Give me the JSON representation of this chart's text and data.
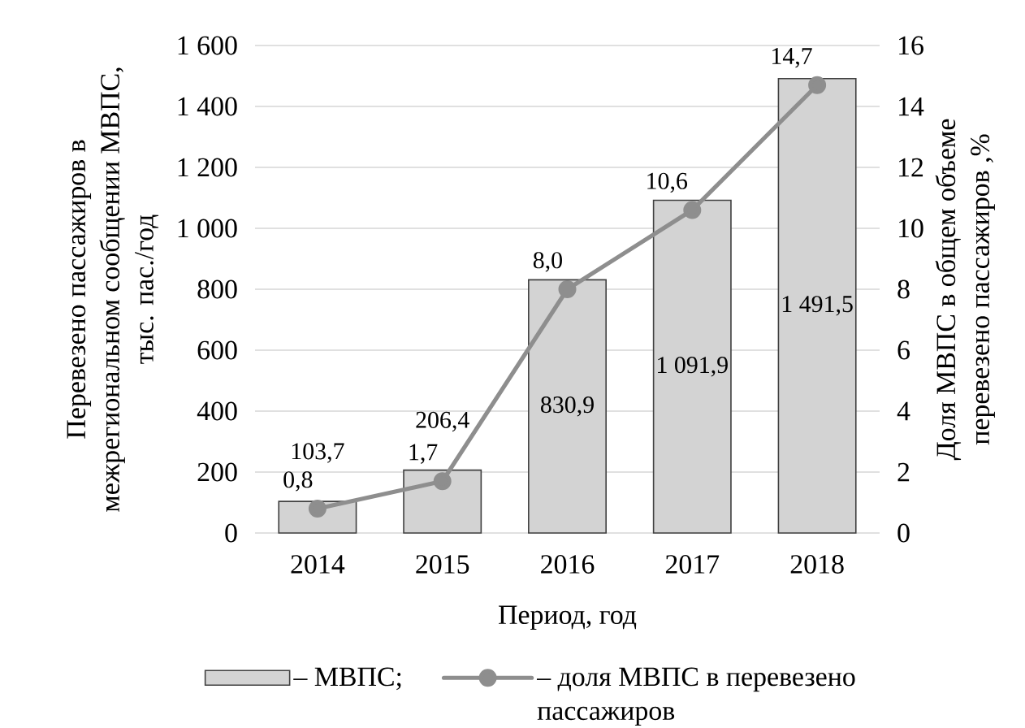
{
  "chart_data": {
    "type": "bar",
    "xlabel": "Период, год",
    "ylabel": "Перевезено пассажиров в межрегиональном сообщении МВПС, тыс. пас./год",
    "y2label": "Доля МВПС в общем объеме перевезено пассажиров ,%",
    "categories": [
      "2014",
      "2015",
      "2016",
      "2017",
      "2018"
    ],
    "series": [
      {
        "name": "– МВПС;",
        "color": "#d3d3d3",
        "values": [
          103.7,
          206.4,
          830.9,
          1091.9,
          1491.5
        ],
        "value_labels": [
          "103,7",
          "206,4",
          "830,9",
          "1 091,9",
          "1 491,5"
        ]
      },
      {
        "name": "– доля МВПС в перевезено пассажиров",
        "type": "line",
        "axis": "y2",
        "color": "#8e8e8e",
        "marker": "circle",
        "values": [
          0.8,
          1.7,
          8.0,
          10.6,
          14.7
        ],
        "value_labels": [
          "0,8",
          "1,7",
          "8,0",
          "10,6",
          "14,7"
        ]
      }
    ],
    "ylim": [
      0,
      1600
    ],
    "yticks": [
      0,
      200,
      400,
      600,
      800,
      {
        "value": 1000,
        "label": "1 000"
      },
      {
        "value": 1200,
        "label": "1 200"
      },
      {
        "value": 1400,
        "label": "1 400"
      },
      {
        "value": 1600,
        "label": "1 600"
      }
    ],
    "y2lim": [
      0,
      16
    ],
    "y2ticks": [
      0,
      2,
      4,
      6,
      8,
      10,
      12,
      14,
      16
    ],
    "grid": "y",
    "legend": "bottom"
  }
}
